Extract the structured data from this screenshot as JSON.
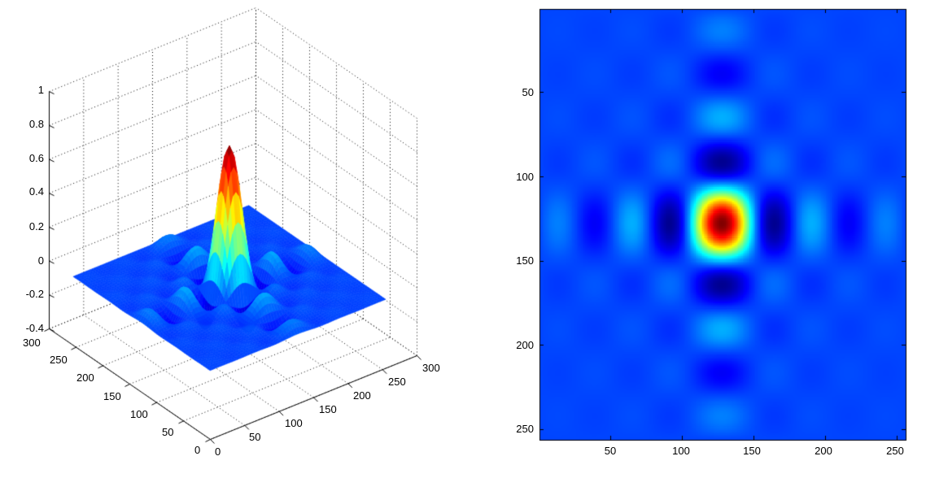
{
  "figure": {
    "background": "#ffffff",
    "subplots": 2
  },
  "chart_data": [
    {
      "type": "surface",
      "title": "",
      "xlabel": "",
      "ylabel": "",
      "zlabel": "",
      "function": "sinc(x)*sinc(y) centered at (128,128)",
      "center": [
        128,
        128
      ],
      "zero_spacing_units": 25.6,
      "peak_value": 0.84,
      "grid_size": 256,
      "colormap": "jet",
      "color_range": [
        -0.2,
        0.84
      ],
      "grid": true,
      "xlim": [
        0,
        300
      ],
      "ylim": [
        0,
        300
      ],
      "zlim": [
        -0.4,
        1
      ],
      "x_ticks": [
        "0",
        "50",
        "100",
        "150",
        "200",
        "250",
        "300"
      ],
      "y_ticks": [
        "0",
        "50",
        "100",
        "150",
        "200",
        "250",
        "300"
      ],
      "z_ticks": [
        "-0.4",
        "-0.2",
        "0",
        "0.2",
        "0.4",
        "0.6",
        "0.8",
        "1"
      ]
    },
    {
      "type": "heatmap",
      "title": "",
      "xlabel": "",
      "ylabel": "",
      "function": "sinc(x)*sinc(y) centered at (128,128)",
      "center": [
        128,
        128
      ],
      "zero_spacing_units": 25.6,
      "peak_value": 0.84,
      "colormap": "jet",
      "color_range": [
        -0.2,
        0.84
      ],
      "xlim": [
        0.5,
        256.5
      ],
      "ylim": [
        0.5,
        256.5
      ],
      "y_reversed": true,
      "x_ticks": [
        "50",
        "100",
        "150",
        "200",
        "250"
      ],
      "y_ticks": [
        "50",
        "100",
        "150",
        "200",
        "250"
      ]
    }
  ]
}
